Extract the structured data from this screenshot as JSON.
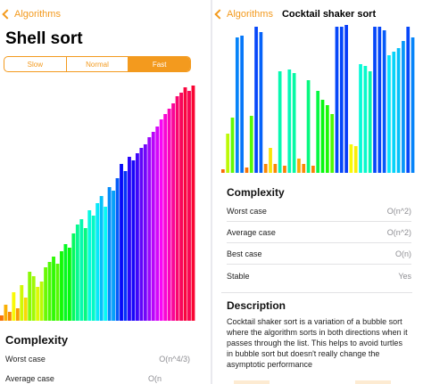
{
  "left": {
    "back_label": "Algorithms",
    "title": "Shell sort",
    "speed_options": [
      "Slow",
      "Normal",
      "Fast"
    ],
    "selected_speed": "Fast",
    "complexity_heading": "Complexity",
    "rows": [
      {
        "label": "Worst case",
        "value": "O(n^4/3)"
      },
      {
        "label": "Average case",
        "value": "O(n log n)"
      }
    ]
  },
  "right": {
    "back_label": "Algorithms",
    "title": "Cocktail shaker sort",
    "complexity_heading": "Complexity",
    "rows": [
      {
        "label": "Worst case",
        "value": "O(n^2)"
      },
      {
        "label": "Average case",
        "value": "O(n^2)"
      },
      {
        "label": "Best case",
        "value": "O(n)"
      },
      {
        "label": "Stable",
        "value": "Yes"
      }
    ],
    "description_heading": "Description",
    "description": "Cocktail shaker sort is a variation of a bubble sort where the algorithm sorts in both directions when it passes through the list. This helps to avoid turtles in bubble sort but doesn't really change the asymptotic performance"
  },
  "shell_bars": [
    6,
    18,
    10,
    32,
    14,
    40,
    26,
    55,
    50,
    38,
    44,
    60,
    66,
    72,
    64,
    78,
    86,
    82,
    98,
    108,
    114,
    104,
    124,
    118,
    132,
    140,
    128,
    150,
    146,
    160,
    176,
    168,
    184,
    180,
    188,
    194,
    198,
    206,
    212,
    218,
    226,
    232,
    238,
    244,
    252,
    256,
    262,
    258,
    264
  ],
  "cocktail_bars": [
    4,
    44,
    62,
    152,
    154,
    6,
    64,
    164,
    158,
    10,
    28,
    10,
    114,
    8,
    116,
    112,
    16,
    10,
    104,
    8,
    92,
    82,
    76,
    66,
    164,
    164,
    166,
    32,
    30,
    122,
    120,
    114,
    164,
    164,
    160,
    132,
    136,
    140,
    148,
    164,
    152
  ]
}
